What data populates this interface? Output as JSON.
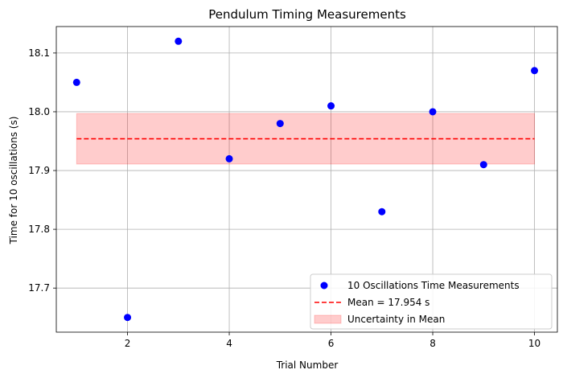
{
  "chart_data": {
    "type": "scatter",
    "title": "Pendulum Timing Measurements",
    "xlabel": "Trial Number",
    "ylabel": "Time for 10 oscillations (s)",
    "xlim": [
      0.6,
      10.45
    ],
    "ylim": [
      17.625,
      18.145
    ],
    "x_ticks": [
      2,
      4,
      6,
      8,
      10
    ],
    "y_ticks": [
      17.7,
      17.8,
      17.9,
      18.0,
      18.1
    ],
    "grid": true,
    "legend_position": "lower-right",
    "series": [
      {
        "name": "10 Oscillations Time Measurements",
        "kind": "scatter",
        "color": "#0000ff",
        "x": [
          1,
          2,
          3,
          4,
          5,
          6,
          7,
          8,
          9,
          10
        ],
        "y": [
          18.05,
          17.65,
          18.12,
          17.92,
          17.98,
          18.01,
          17.83,
          18.0,
          17.91,
          18.07
        ]
      },
      {
        "name": "Mean = 17.954 s",
        "kind": "hline",
        "color": "#ff0000",
        "style": "dashed",
        "x_range": [
          1,
          10
        ],
        "y": 17.954
      },
      {
        "name": "Uncertainty in Mean",
        "kind": "band",
        "color": "#ff0000",
        "opacity": 0.2,
        "x_range": [
          1,
          10
        ],
        "y_range": [
          17.911,
          17.997
        ]
      }
    ]
  }
}
